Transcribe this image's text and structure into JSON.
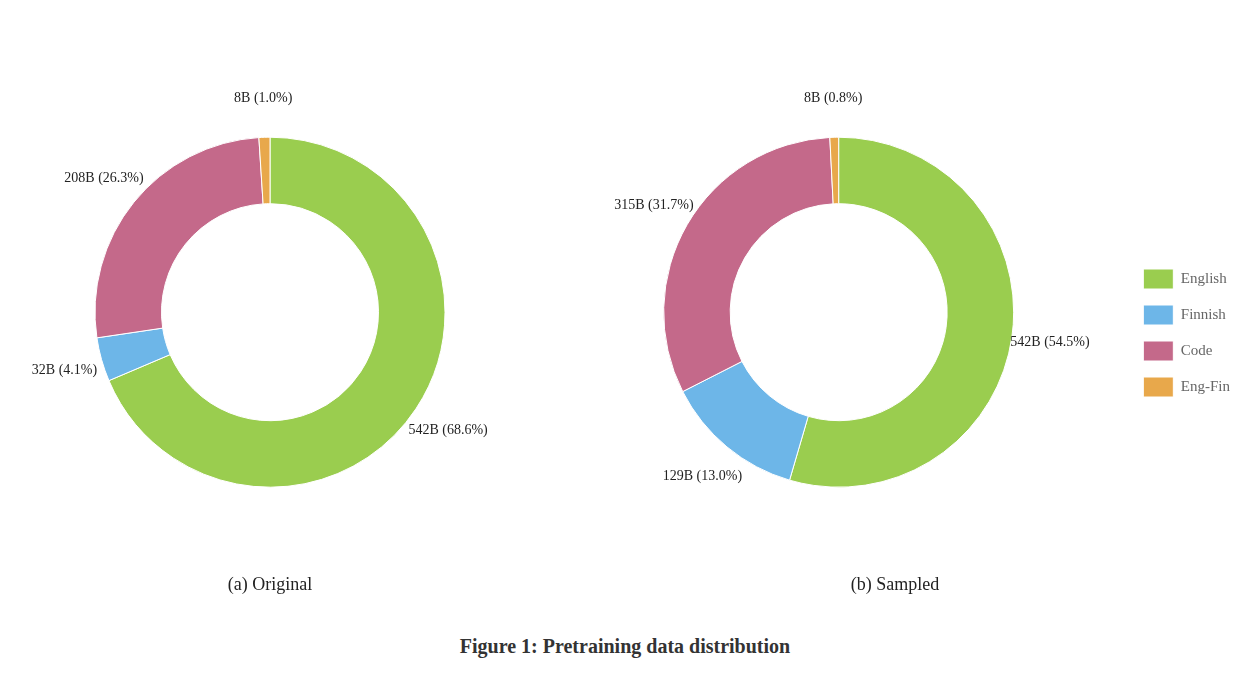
{
  "title": "Figure 1: Pretraining data distribution",
  "chart_data": [
    {
      "type": "doughnut",
      "title": "(a) Original",
      "categories": [
        "English",
        "Finnish",
        "Code",
        "Eng-Fin"
      ],
      "values": [
        542,
        32,
        208,
        8
      ],
      "value_labels": [
        "542B (68.6%)",
        "32B (4.1%)",
        "208B (26.3%)",
        "8B (1.0%)"
      ],
      "colors": [
        "#9acd4f",
        "#6db6e8",
        "#c4698a",
        "#e8a84b"
      ],
      "data_labels": true
    },
    {
      "type": "doughnut",
      "title": "(b) Sampled",
      "categories": [
        "English",
        "Finnish",
        "Code",
        "Eng-Fin"
      ],
      "values": [
        542,
        129,
        315,
        8
      ],
      "value_labels": [
        "542B (54.5%)",
        "129B (13.0%)",
        "315B (31.7%)",
        "8B (0.8%)"
      ],
      "colors": [
        "#9acd4f",
        "#6db6e8",
        "#c4698a",
        "#e8a84b"
      ],
      "data_labels": true,
      "legend": "right"
    }
  ]
}
